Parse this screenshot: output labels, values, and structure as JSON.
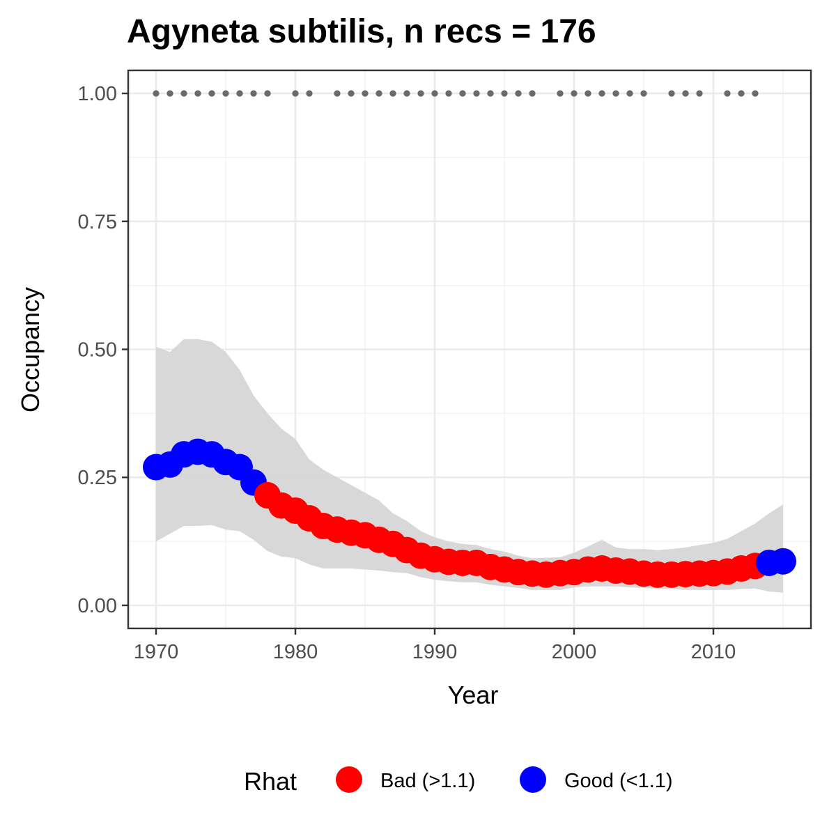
{
  "chart_data": {
    "type": "line",
    "title": "Agyneta subtilis, n recs = 176",
    "xlabel": "Year",
    "ylabel": "Occupancy",
    "xlim": [
      1968,
      2017
    ],
    "ylim": [
      -0.045,
      1.045
    ],
    "x_ticks": [
      1970,
      1980,
      1990,
      2000,
      2010
    ],
    "x_tick_labels": [
      "1970",
      "1980",
      "1990",
      "2000",
      "2010"
    ],
    "y_ticks": [
      0,
      0.25,
      0.5,
      0.75,
      1.0
    ],
    "y_tick_labels": [
      "0.00",
      "0.25",
      "0.50",
      "0.75",
      "1.00"
    ],
    "grid": true,
    "legend_position": "bottom",
    "legend_title": "Rhat",
    "legend": [
      {
        "label": "Bad (>1.1)",
        "color": "#ff0000"
      },
      {
        "label": "Good (<1.1)",
        "color": "#0000ff"
      }
    ],
    "colors": {
      "bad": "#ff0000",
      "good": "#0000ff",
      "ribbon": "#d6d6d6",
      "records": "#696969"
    },
    "series": [
      {
        "x": [
          1970,
          1971,
          1972,
          1973,
          1974,
          1975,
          1976,
          1977,
          1978,
          1979,
          1980,
          1981,
          1982,
          1983,
          1984,
          1985,
          1986,
          1987,
          1988,
          1989,
          1990,
          1991,
          1992,
          1993,
          1994,
          1995,
          1996,
          1997,
          1998,
          1999,
          2000,
          2001,
          2002,
          2003,
          2004,
          2005,
          2006,
          2007,
          2008,
          2009,
          2010,
          2011,
          2012,
          2013,
          2014,
          2015
        ],
        "mean": [
          0.27,
          0.275,
          0.295,
          0.3,
          0.295,
          0.28,
          0.27,
          0.24,
          0.215,
          0.195,
          0.185,
          0.17,
          0.155,
          0.148,
          0.142,
          0.137,
          0.128,
          0.12,
          0.108,
          0.097,
          0.09,
          0.085,
          0.083,
          0.083,
          0.075,
          0.07,
          0.065,
          0.062,
          0.06,
          0.063,
          0.065,
          0.07,
          0.072,
          0.068,
          0.066,
          0.062,
          0.06,
          0.06,
          0.061,
          0.062,
          0.063,
          0.066,
          0.072,
          0.077,
          0.083,
          0.086
        ],
        "lower": [
          0.125,
          0.14,
          0.155,
          0.155,
          0.157,
          0.148,
          0.145,
          0.128,
          0.106,
          0.095,
          0.092,
          0.08,
          0.072,
          0.072,
          0.072,
          0.07,
          0.068,
          0.065,
          0.063,
          0.055,
          0.05,
          0.047,
          0.045,
          0.045,
          0.04,
          0.037,
          0.034,
          0.03,
          0.03,
          0.03,
          0.035,
          0.037,
          0.037,
          0.037,
          0.035,
          0.034,
          0.032,
          0.032,
          0.03,
          0.03,
          0.03,
          0.03,
          0.032,
          0.033,
          0.027,
          0.025
        ],
        "upper": [
          0.505,
          0.495,
          0.52,
          0.52,
          0.515,
          0.495,
          0.46,
          0.41,
          0.375,
          0.345,
          0.325,
          0.285,
          0.265,
          0.25,
          0.235,
          0.22,
          0.205,
          0.18,
          0.165,
          0.145,
          0.133,
          0.125,
          0.12,
          0.118,
          0.11,
          0.105,
          0.097,
          0.092,
          0.093,
          0.094,
          0.103,
          0.115,
          0.128,
          0.113,
          0.11,
          0.11,
          0.108,
          0.11,
          0.113,
          0.118,
          0.122,
          0.13,
          0.145,
          0.16,
          0.18,
          0.197
        ],
        "rhat": [
          "Good",
          "Good",
          "Good",
          "Good",
          "Good",
          "Good",
          "Good",
          "Good",
          "Bad",
          "Bad",
          "Bad",
          "Bad",
          "Bad",
          "Bad",
          "Bad",
          "Bad",
          "Bad",
          "Bad",
          "Bad",
          "Bad",
          "Bad",
          "Bad",
          "Bad",
          "Bad",
          "Bad",
          "Bad",
          "Bad",
          "Bad",
          "Bad",
          "Bad",
          "Bad",
          "Bad",
          "Bad",
          "Bad",
          "Bad",
          "Bad",
          "Bad",
          "Bad",
          "Bad",
          "Bad",
          "Bad",
          "Bad",
          "Bad",
          "Bad",
          "Good",
          "Good"
        ]
      }
    ],
    "record_years": [
      1970,
      1971,
      1972,
      1973,
      1974,
      1975,
      1976,
      1977,
      1978,
      1980,
      1981,
      1983,
      1984,
      1985,
      1986,
      1987,
      1988,
      1989,
      1990,
      1991,
      1992,
      1993,
      1994,
      1995,
      1996,
      1997,
      1999,
      2000,
      2001,
      2002,
      2003,
      2004,
      2005,
      2007,
      2008,
      2009,
      2011,
      2012,
      2013
    ],
    "record_value": 1.0
  }
}
